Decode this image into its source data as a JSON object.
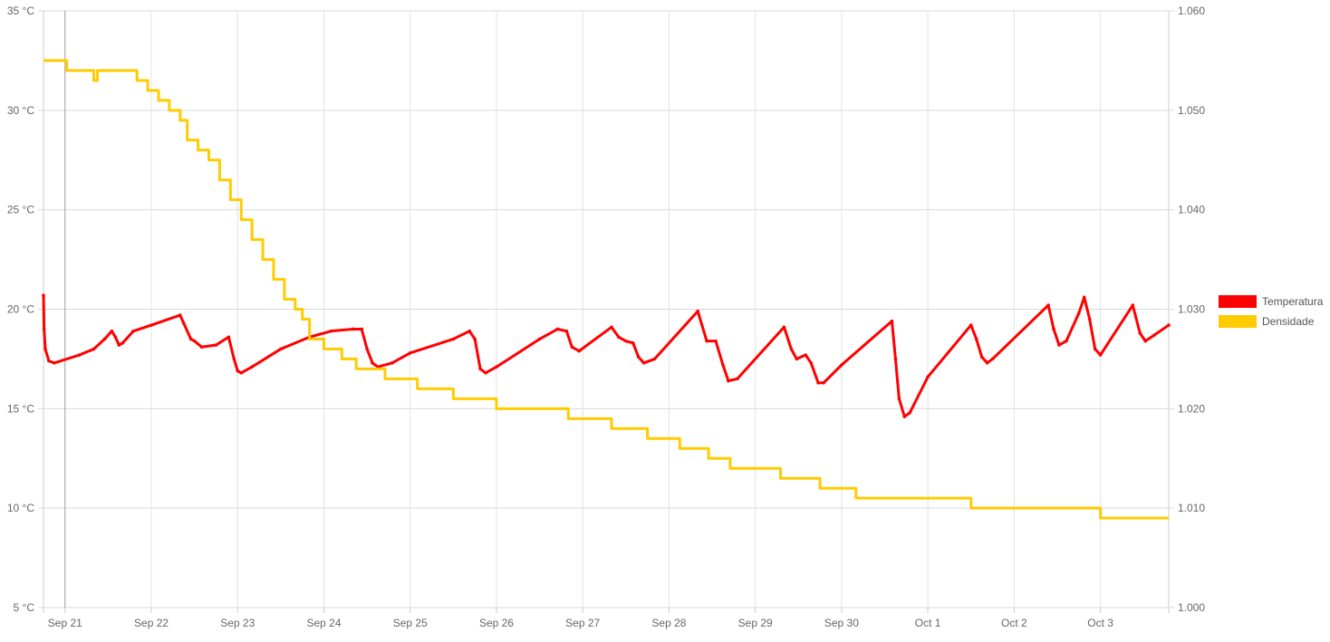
{
  "chart_data": {
    "type": "line",
    "title": "",
    "x_ticks": [
      "Sep 21",
      "Sep 22",
      "Sep 23",
      "Sep 24",
      "Sep 25",
      "Sep 26",
      "Sep 27",
      "Sep 28",
      "Sep 29",
      "Sep 30",
      "Oct 1",
      "Oct 2",
      "Oct 3"
    ],
    "y_left": {
      "ticks": [
        "5 °C",
        "10 °C",
        "15 °C",
        "20 °C",
        "25 °C",
        "30 °C",
        "35 °C"
      ],
      "range": [
        5,
        35
      ]
    },
    "y_right": {
      "ticks": [
        "1.000",
        "1.010",
        "1.020",
        "1.030",
        "1.040",
        "1.050",
        "1.060"
      ],
      "range": [
        1.0,
        1.06
      ]
    },
    "x_range": [
      "2023-09-20T18:00",
      "2023-10-03T19:00"
    ],
    "grid": true,
    "legend_position": "right",
    "series": [
      {
        "name": "Temperatura",
        "axis": "left",
        "color": "#ff0000",
        "points": [
          [
            "2023-09-20T18:00",
            20.7
          ],
          [
            "2023-09-20T18:10",
            19.0
          ],
          [
            "2023-09-20T18:30",
            18.0
          ],
          [
            "2023-09-20T19:30",
            17.4
          ],
          [
            "2023-09-20T21:00",
            17.3
          ],
          [
            "2023-09-21T04:00",
            17.7
          ],
          [
            "2023-09-21T08:00",
            18.0
          ],
          [
            "2023-09-21T11:00",
            18.5
          ],
          [
            "2023-09-21T13:00",
            18.9
          ],
          [
            "2023-09-21T14:00",
            18.6
          ],
          [
            "2023-09-21T15:00",
            18.2
          ],
          [
            "2023-09-21T16:00",
            18.3
          ],
          [
            "2023-09-21T19:00",
            18.9
          ],
          [
            "2023-09-22T00:00",
            19.2
          ],
          [
            "2023-09-22T08:00",
            19.7
          ],
          [
            "2023-09-22T09:00",
            19.3
          ],
          [
            "2023-09-22T11:00",
            18.5
          ],
          [
            "2023-09-22T12:00",
            18.4
          ],
          [
            "2023-09-22T14:00",
            18.1
          ],
          [
            "2023-09-22T18:00",
            18.2
          ],
          [
            "2023-09-22T21:30",
            18.6
          ],
          [
            "2023-09-22T23:00",
            17.5
          ],
          [
            "2023-09-23T00:00",
            16.9
          ],
          [
            "2023-09-23T01:00",
            16.8
          ],
          [
            "2023-09-23T04:00",
            17.1
          ],
          [
            "2023-09-23T12:00",
            18.0
          ],
          [
            "2023-09-23T20:00",
            18.6
          ],
          [
            "2023-09-24T02:00",
            18.9
          ],
          [
            "2023-09-24T08:00",
            19.0
          ],
          [
            "2023-09-24T10:30",
            19.0
          ],
          [
            "2023-09-24T12:00",
            18.0
          ],
          [
            "2023-09-24T13:30",
            17.3
          ],
          [
            "2023-09-24T15:00",
            17.1
          ],
          [
            "2023-09-24T19:00",
            17.3
          ],
          [
            "2023-09-25T00:00",
            17.8
          ],
          [
            "2023-09-25T12:00",
            18.5
          ],
          [
            "2023-09-25T16:30",
            18.9
          ],
          [
            "2023-09-25T18:00",
            18.5
          ],
          [
            "2023-09-25T19:30",
            17.0
          ],
          [
            "2023-09-25T21:00",
            16.8
          ],
          [
            "2023-09-26T00:00",
            17.1
          ],
          [
            "2023-09-26T12:00",
            18.5
          ],
          [
            "2023-09-26T17:00",
            19.0
          ],
          [
            "2023-09-26T19:30",
            18.9
          ],
          [
            "2023-09-26T21:00",
            18.1
          ],
          [
            "2023-09-26T23:00",
            17.9
          ],
          [
            "2023-09-27T08:00",
            19.1
          ],
          [
            "2023-09-27T10:00",
            18.6
          ],
          [
            "2023-09-27T12:00",
            18.4
          ],
          [
            "2023-09-27T14:00",
            18.3
          ],
          [
            "2023-09-27T15:30",
            17.6
          ],
          [
            "2023-09-27T17:00",
            17.3
          ],
          [
            "2023-09-27T20:00",
            17.5
          ],
          [
            "2023-09-28T08:00",
            19.9
          ],
          [
            "2023-09-28T10:30",
            18.4
          ],
          [
            "2023-09-28T13:00",
            18.4
          ],
          [
            "2023-09-28T15:00",
            17.2
          ],
          [
            "2023-09-28T16:30",
            16.4
          ],
          [
            "2023-09-28T19:00",
            16.5
          ],
          [
            "2023-09-29T08:00",
            19.1
          ],
          [
            "2023-09-29T10:00",
            18.0
          ],
          [
            "2023-09-29T11:30",
            17.5
          ],
          [
            "2023-09-29T14:00",
            17.7
          ],
          [
            "2023-09-29T15:30",
            17.3
          ],
          [
            "2023-09-29T17:30",
            16.3
          ],
          [
            "2023-09-29T19:00",
            16.3
          ],
          [
            "2023-09-30T00:00",
            17.2
          ],
          [
            "2023-09-30T14:00",
            19.4
          ],
          [
            "2023-09-30T15:00",
            17.5
          ],
          [
            "2023-09-30T16:00",
            15.5
          ],
          [
            "2023-09-30T17:30",
            14.6
          ],
          [
            "2023-09-30T19:00",
            14.8
          ],
          [
            "2023-10-01T00:00",
            16.6
          ],
          [
            "2023-10-01T12:00",
            19.2
          ],
          [
            "2023-10-01T13:30",
            18.5
          ],
          [
            "2023-10-01T15:00",
            17.6
          ],
          [
            "2023-10-01T16:30",
            17.3
          ],
          [
            "2023-10-01T18:00",
            17.5
          ],
          [
            "2023-10-02T09:30",
            20.2
          ],
          [
            "2023-10-02T11:00",
            19.0
          ],
          [
            "2023-10-02T12:30",
            18.2
          ],
          [
            "2023-10-02T14:30",
            18.4
          ],
          [
            "2023-10-02T18:00",
            19.8
          ],
          [
            "2023-10-02T19:30",
            20.6
          ],
          [
            "2023-10-02T21:00",
            19.5
          ],
          [
            "2023-10-02T22:30",
            18.0
          ],
          [
            "2023-10-03T00:00",
            17.7
          ],
          [
            "2023-10-03T09:00",
            20.2
          ],
          [
            "2023-10-03T11:00",
            18.8
          ],
          [
            "2023-10-03T12:30",
            18.4
          ],
          [
            "2023-10-03T15:00",
            18.7
          ],
          [
            "2023-10-03T19:00",
            19.2
          ]
        ]
      },
      {
        "name": "Densidade",
        "axis": "right",
        "color": "#ffcc00",
        "points": [
          [
            "2023-09-20T18:00",
            1.055
          ],
          [
            "2023-09-21T00:00",
            1.055
          ],
          [
            "2023-09-21T00:30",
            1.054
          ],
          [
            "2023-09-21T07:00",
            1.054
          ],
          [
            "2023-09-21T08:00",
            1.053
          ],
          [
            "2023-09-21T09:00",
            1.054
          ],
          [
            "2023-09-21T19:00",
            1.054
          ],
          [
            "2023-09-21T20:00",
            1.053
          ],
          [
            "2023-09-21T23:00",
            1.052
          ],
          [
            "2023-09-22T02:00",
            1.051
          ],
          [
            "2023-09-22T05:00",
            1.05
          ],
          [
            "2023-09-22T08:00",
            1.049
          ],
          [
            "2023-09-22T10:00",
            1.047
          ],
          [
            "2023-09-22T13:00",
            1.046
          ],
          [
            "2023-09-22T16:00",
            1.045
          ],
          [
            "2023-09-22T19:00",
            1.043
          ],
          [
            "2023-09-22T22:00",
            1.041
          ],
          [
            "2023-09-23T01:00",
            1.039
          ],
          [
            "2023-09-23T04:00",
            1.037
          ],
          [
            "2023-09-23T07:00",
            1.035
          ],
          [
            "2023-09-23T10:00",
            1.033
          ],
          [
            "2023-09-23T13:00",
            1.031
          ],
          [
            "2023-09-23T16:00",
            1.03
          ],
          [
            "2023-09-23T18:00",
            1.029
          ],
          [
            "2023-09-23T20:00",
            1.027
          ],
          [
            "2023-09-24T00:00",
            1.026
          ],
          [
            "2023-09-24T05:00",
            1.025
          ],
          [
            "2023-09-24T09:00",
            1.024
          ],
          [
            "2023-09-24T17:00",
            1.023
          ],
          [
            "2023-09-25T02:00",
            1.022
          ],
          [
            "2023-09-25T12:00",
            1.021
          ],
          [
            "2023-09-25T20:00",
            1.021
          ],
          [
            "2023-09-26T00:00",
            1.02
          ],
          [
            "2023-09-26T12:00",
            1.02
          ],
          [
            "2023-09-26T20:00",
            1.019
          ],
          [
            "2023-09-27T04:00",
            1.019
          ],
          [
            "2023-09-27T08:00",
            1.018
          ],
          [
            "2023-09-27T18:00",
            1.017
          ],
          [
            "2023-09-28T03:00",
            1.016
          ],
          [
            "2023-09-28T11:00",
            1.015
          ],
          [
            "2023-09-28T17:00",
            1.014
          ],
          [
            "2023-09-29T03:00",
            1.014
          ],
          [
            "2023-09-29T07:00",
            1.013
          ],
          [
            "2023-09-29T18:00",
            1.012
          ],
          [
            "2023-09-30T04:00",
            1.011
          ],
          [
            "2023-10-01T04:00",
            1.011
          ],
          [
            "2023-10-01T10:00",
            1.011
          ],
          [
            "2023-10-01T12:00",
            1.01
          ],
          [
            "2023-10-02T12:00",
            1.01
          ],
          [
            "2023-10-02T20:00",
            1.01
          ],
          [
            "2023-10-03T00:00",
            1.009
          ],
          [
            "2023-10-03T19:00",
            1.009
          ]
        ]
      }
    ]
  }
}
